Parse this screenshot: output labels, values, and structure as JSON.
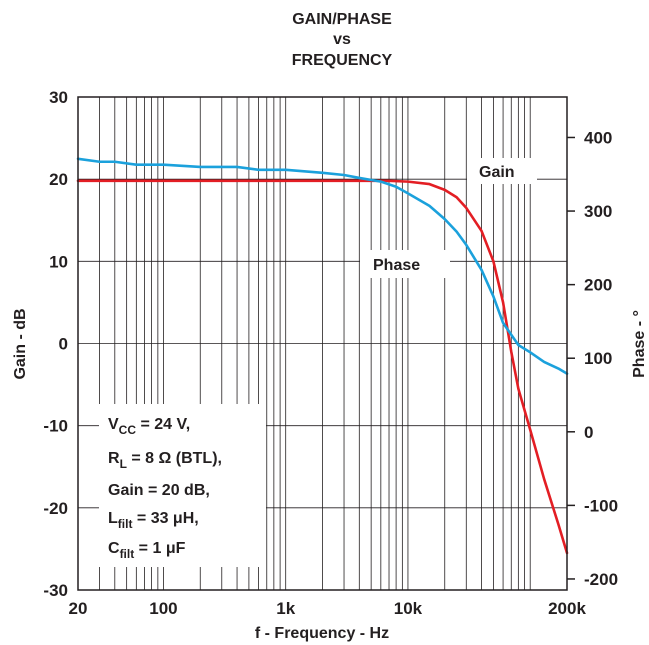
{
  "chart_data": {
    "type": "line",
    "title": [
      "GAIN/PHASE",
      "vs",
      "FREQUENCY"
    ],
    "xlabel": "f - Frequency - Hz",
    "ylabel": "Gain - dB",
    "y2label": "Phase - °",
    "xscale": "log",
    "xlim": [
      20,
      200000
    ],
    "ylim": [
      -30,
      30
    ],
    "y2lim": [
      -215,
      455
    ],
    "x_ticks": [
      20,
      100,
      1000,
      10000,
      200000
    ],
    "x_tick_labels": [
      "20",
      "100",
      "1k",
      "10k",
      "200k"
    ],
    "y_ticks": [
      30,
      20,
      10,
      0,
      -10,
      -20,
      -30
    ],
    "y_tick_labels": [
      "30",
      "20",
      "10",
      "0",
      "-10",
      "-20",
      "-30"
    ],
    "y2_ticks": [
      400,
      300,
      200,
      100,
      0,
      -100,
      -200
    ],
    "y2_tick_labels": [
      "400",
      "300",
      "200",
      "100",
      "0",
      "-100",
      "-200"
    ],
    "grid": true,
    "series": [
      {
        "name": "Gain",
        "axis": "left",
        "color": "#e31e24",
        "points": [
          [
            20,
            19.8
          ],
          [
            50,
            19.8
          ],
          [
            100,
            19.8
          ],
          [
            500,
            19.8
          ],
          [
            1000,
            19.8
          ],
          [
            3000,
            19.8
          ],
          [
            7000,
            19.8
          ],
          [
            10000,
            19.7
          ],
          [
            15000,
            19.4
          ],
          [
            20000,
            18.7
          ],
          [
            25000,
            17.8
          ],
          [
            30000,
            16.5
          ],
          [
            40000,
            13.7
          ],
          [
            50000,
            10.0
          ],
          [
            60000,
            5.0
          ],
          [
            70000,
            -1.0
          ],
          [
            80000,
            -5.5
          ],
          [
            100000,
            -10.5
          ],
          [
            130000,
            -16.5
          ],
          [
            170000,
            -22.0
          ],
          [
            200000,
            -25.5
          ]
        ]
      },
      {
        "name": "Phase",
        "axis": "right",
        "color": "#1ba1dc",
        "points": [
          [
            20,
            371
          ],
          [
            30,
            367
          ],
          [
            40,
            367
          ],
          [
            60,
            363
          ],
          [
            100,
            363
          ],
          [
            200,
            360
          ],
          [
            400,
            360
          ],
          [
            600,
            356
          ],
          [
            1000,
            356
          ],
          [
            2000,
            352
          ],
          [
            3000,
            349
          ],
          [
            4000,
            345
          ],
          [
            6000,
            340
          ],
          [
            8000,
            333
          ],
          [
            10000,
            324
          ],
          [
            15000,
            307
          ],
          [
            20000,
            289
          ],
          [
            25000,
            272
          ],
          [
            30000,
            254
          ],
          [
            40000,
            220
          ],
          [
            50000,
            184
          ],
          [
            60000,
            148
          ],
          [
            80000,
            118
          ],
          [
            100000,
            108
          ],
          [
            130000,
            95
          ],
          [
            170000,
            86
          ],
          [
            200000,
            79
          ]
        ]
      }
    ],
    "annotations": [
      {
        "text": "Gain",
        "points_to": "Gain"
      },
      {
        "text": "Phase",
        "points_to": "Phase"
      }
    ],
    "conditions": {
      "line1_main": "V",
      "line1_sub": "CC",
      "line1_rest": " = 24 V,",
      "line2_main": "R",
      "line2_sub": "L",
      "line2_rest": " = 8 Ω (BTL),",
      "line3": "Gain = 20 dB,",
      "line4_main": "L",
      "line4_sub": "filt",
      "line4_rest": " = 33 μH,",
      "line5_main": "C",
      "line5_sub": "filt",
      "line5_rest": " = 1 μF"
    }
  }
}
